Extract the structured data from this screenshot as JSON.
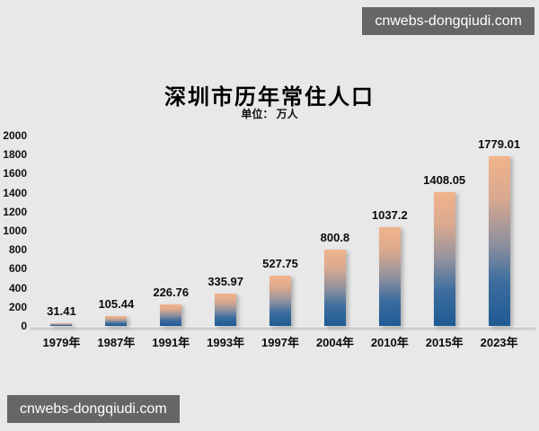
{
  "watermarks": {
    "top": "cnwebs-dongqiudi.com",
    "bottom": "cnwebs-dongqiudi.com",
    "box_color": "#666666",
    "text_color": "#ffffff"
  },
  "chart_data": {
    "type": "bar",
    "title": "深圳市历年常住人口",
    "subtitle": "单位： 万人",
    "unit": "万人",
    "categories": [
      "1979年",
      "1987年",
      "1991年",
      "1993年",
      "1997年",
      "2004年",
      "2010年",
      "2015年",
      "2023年"
    ],
    "values": [
      31.41,
      105.44,
      226.76,
      335.97,
      527.75,
      800.8,
      1037.2,
      1408.05,
      1779.01
    ],
    "value_labels": [
      "31.41",
      "105.44",
      "226.76",
      "335.97",
      "527.75",
      "800.8",
      "1037.2",
      "1408.05",
      "1779.01"
    ],
    "ylim": [
      0,
      2000
    ],
    "ytick_step": 200,
    "ytick_labels": [
      "2000",
      "1800",
      "1600",
      "1400",
      "1200",
      "1000",
      "800",
      "600",
      "400",
      "200",
      "0"
    ],
    "grid": false,
    "legend": "none",
    "background_color": "#e8e8e8",
    "bar_gradient_top": "#f2b48c",
    "bar_gradient_bottom": "#1e5b94"
  }
}
